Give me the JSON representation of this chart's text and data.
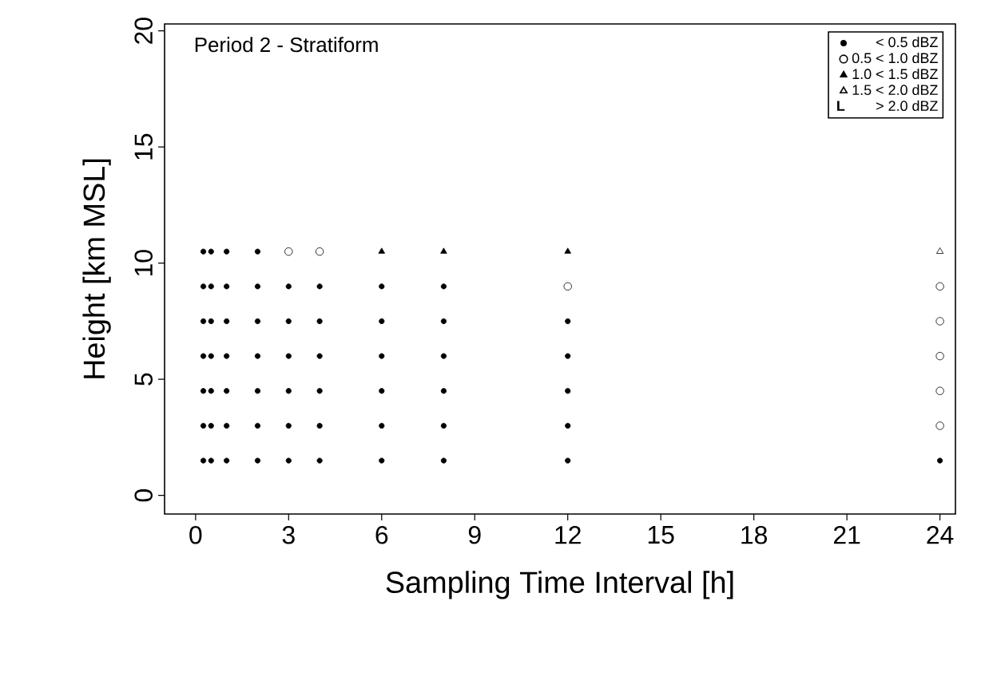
{
  "chart_data": {
    "type": "scatter",
    "title": "Period 2 - Stratiform",
    "xlabel": "Sampling Time Interval [h]",
    "ylabel": "Height [km MSL]",
    "xlim": [
      -1,
      24.5
    ],
    "ylim": [
      -0.8,
      20.3
    ],
    "xticks": [
      0,
      3,
      6,
      9,
      12,
      15,
      18,
      21,
      24
    ],
    "yticks": [
      0,
      5,
      10,
      15,
      20
    ],
    "legend": "top right",
    "grid": false,
    "annotations": [
      "L"
    ],
    "series": [
      {
        "name": "< 0.5 dBZ",
        "color": "#000000",
        "marker": "circle",
        "x": [
          0.25,
          0.25,
          0.25,
          0.25,
          0.25,
          0.25,
          0.25,
          0.5,
          0.5,
          0.5,
          0.5,
          0.5,
          0.5,
          0.5,
          1,
          1,
          1,
          1,
          1,
          1,
          1,
          2,
          2,
          2,
          2,
          2,
          2,
          2,
          3,
          3,
          3,
          3,
          3,
          3,
          4,
          4,
          4,
          4,
          4,
          4,
          6,
          6,
          6,
          6,
          6,
          6,
          8,
          8,
          8,
          8,
          8,
          8,
          12,
          12,
          12,
          12,
          12,
          24
        ],
        "values": [
          1.5,
          3,
          4.5,
          6,
          7.5,
          9,
          10.5,
          1.5,
          3,
          4.5,
          6,
          7.5,
          9,
          10.5,
          1.5,
          3,
          4.5,
          6,
          7.5,
          9,
          10.5,
          1.5,
          3,
          4.5,
          6,
          7.5,
          9,
          10.5,
          1.5,
          3,
          4.5,
          6,
          7.5,
          9,
          1.5,
          3,
          4.5,
          6,
          7.5,
          9,
          1.5,
          3,
          4.5,
          6,
          7.5,
          9,
          1.5,
          3,
          4.5,
          6,
          7.5,
          9,
          1.5,
          3,
          4.5,
          6,
          7.5,
          1.5
        ]
      },
      {
        "name": "0.5 < 1.0 dBZ",
        "color": "#000000",
        "marker": "circle open",
        "x": [
          3,
          4,
          12,
          24,
          24,
          24,
          24,
          24
        ],
        "values": [
          10.5,
          10.5,
          9,
          3,
          4.5,
          6,
          7.5,
          9
        ]
      },
      {
        "name": "1.0 < 1.5 dBZ",
        "color": "#000000",
        "marker": "triangle",
        "x": [
          6,
          8,
          12
        ],
        "values": [
          10.5,
          10.5,
          10.5
        ]
      },
      {
        "name": "1.5 < 2.0 dBZ",
        "color": "#000000",
        "marker": "triangle open",
        "x": [
          24
        ],
        "values": [
          10.5
        ]
      },
      {
        "name": "> 2.0 dBZ",
        "color": "#000000",
        "marker": "text"
      }
    ]
  }
}
